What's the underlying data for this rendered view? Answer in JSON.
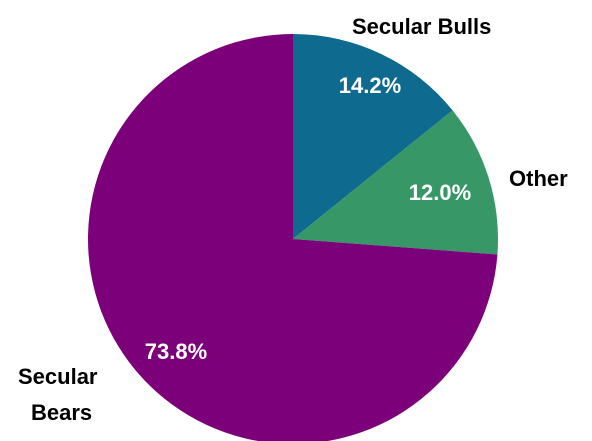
{
  "chart_data": {
    "type": "pie",
    "start": "12 o'clock",
    "direction": "clockwise",
    "slices": [
      {
        "label": "Secular Bulls",
        "value": 14.2,
        "value_label": "14.2%",
        "color": "#0e6a8e"
      },
      {
        "label": "Other",
        "value": 12.0,
        "value_label": "12.0%",
        "color": "#379767"
      },
      {
        "label": "Secular Bears",
        "value": 73.8,
        "value_label": "73.8%",
        "color": "#7b0079"
      }
    ]
  }
}
